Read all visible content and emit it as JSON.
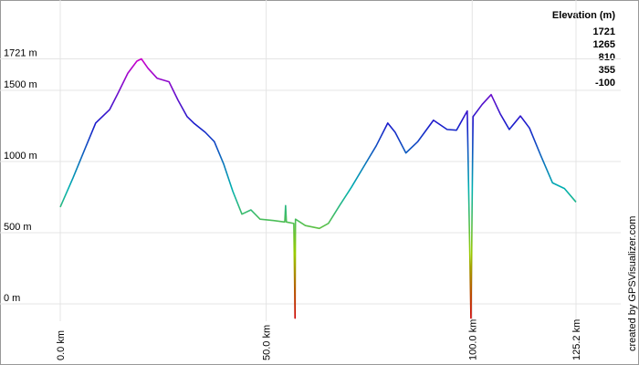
{
  "chart_data": {
    "type": "line",
    "legend_title": "Elevation (m)",
    "credit": "created by GPSVisualizer.com",
    "x": [
      0,
      3.1,
      5.8,
      8.6,
      12.0,
      14.2,
      16.4,
      18.6,
      19.7,
      21.3,
      23.5,
      26.4,
      28.6,
      30.8,
      32.4,
      35.2,
      37.4,
      39.7,
      41.9,
      44.1,
      46.3,
      48.5,
      51.8,
      54.5,
      54.7,
      54.9,
      56.7,
      57.0,
      57.1,
      59.5,
      62.9,
      65.1,
      67.8,
      70.7,
      74.0,
      76.7,
      79.5,
      81.3,
      83.9,
      86.8,
      90.6,
      93.9,
      96.2,
      98.8,
      99.7,
      100.2,
      102.4,
      104.6,
      106.8,
      109.0,
      111.7,
      113.9,
      116.6,
      119.5,
      122.4,
      125.2
    ],
    "series": [
      {
        "name": "Elevation",
        "values": [
          680,
          885,
          1075,
          1270,
          1365,
          1490,
          1620,
          1705,
          1721,
          1655,
          1585,
          1560,
          1430,
          1315,
          1270,
          1205,
          1140,
          980,
          790,
          630,
          660,
          595,
          585,
          575,
          690,
          575,
          565,
          -100,
          595,
          550,
          530,
          565,
          690,
          820,
          980,
          1110,
          1270,
          1205,
          1060,
          1140,
          1290,
          1225,
          1220,
          1355,
          -100,
          1315,
          1400,
          1470,
          1335,
          1225,
          1320,
          1235,
          1045,
          850,
          810,
          715
        ]
      }
    ],
    "colorscale": {
      "values": [
        1721,
        1265,
        810,
        355,
        -100
      ],
      "colors": [
        "#cc00cc",
        "#1a1acc",
        "#00b0b0",
        "#99cc00",
        "#cc0000"
      ]
    },
    "xlim": [
      0,
      125.2
    ],
    "ylim": [
      -100,
      1721
    ],
    "xticks": [
      {
        "value": 0,
        "label": "0.0 km"
      },
      {
        "value": 50,
        "label": "50.0 km"
      },
      {
        "value": 100,
        "label": "100.0 km"
      },
      {
        "value": 125.2,
        "label": "125.2 km"
      }
    ],
    "yticks": [
      {
        "value": 0,
        "label": "0 m"
      },
      {
        "value": 500,
        "label": "500 m"
      },
      {
        "value": 1000,
        "label": "1000 m"
      },
      {
        "value": 1500,
        "label": "1500 m"
      },
      {
        "value": 1721,
        "label": "1721 m"
      }
    ],
    "grid": true
  }
}
